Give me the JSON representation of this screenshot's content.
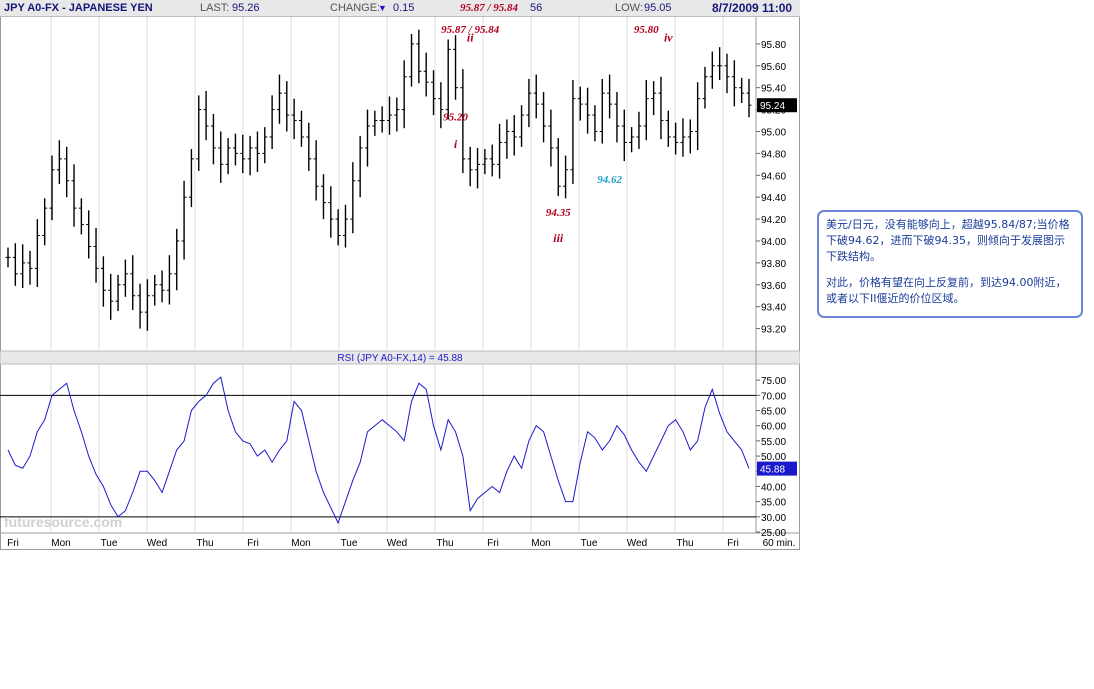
{
  "header": {
    "title": "JPY A0-FX - JAPANESE YEN",
    "last_label": "LAST:",
    "last_value": "95.26",
    "change_label": "CHANGE:",
    "change_arrow": "▼",
    "change_value": "0.15",
    "range_note": "95.87 / 95.84",
    "fragment": "56",
    "low_label": "LOW:",
    "low_value": "95.05",
    "datetime": "8/7/2009 11:00"
  },
  "colors": {
    "price": "#000000",
    "rsi": "#1a1acc",
    "annotation_red": "#b0001e",
    "annotation_blue": "#1aa0c8",
    "note_text": "#1c3d9a",
    "note_border": "#6b86d6"
  },
  "watermark": "futuresource.com",
  "chart_data": [
    {
      "type": "line",
      "subtype": "ohlc-bars",
      "title": "JPY A0-FX - JAPANESE YEN",
      "interval": "60 min.",
      "ylim": [
        93.05,
        96.0
      ],
      "y_ticks": [
        "95.80",
        "95.60",
        "95.40",
        "95.20",
        "95.00",
        "94.80",
        "94.60",
        "94.40",
        "94.20",
        "94.00",
        "93.80",
        "93.60",
        "93.40",
        "93.20"
      ],
      "last_marker": "95.24",
      "x_ticks": [
        "Fri",
        "Mon",
        "Tue",
        "Wed",
        "Thu",
        "Fri",
        "Mon",
        "Tue",
        "Wed",
        "Thu",
        "Fri",
        "Mon",
        "Tue",
        "Wed",
        "Thu",
        "Fri",
        "60 min."
      ],
      "grid": "vertical",
      "series": [
        {
          "values": [
            93.85,
            93.7,
            93.8,
            93.75,
            94.05,
            94.3,
            94.65,
            94.75,
            94.55,
            94.3,
            94.15,
            93.95,
            93.75,
            93.55,
            93.45,
            93.6,
            93.7,
            93.5,
            93.35,
            93.5,
            93.6,
            93.55,
            93.7,
            94.0,
            94.4,
            94.75,
            95.2,
            95.05,
            94.85,
            94.7,
            94.85,
            94.8,
            94.75,
            94.85,
            94.8,
            94.95,
            95.2,
            95.35,
            95.15,
            95.1,
            94.95,
            94.75,
            94.5,
            94.35,
            94.2,
            94.05,
            94.2,
            94.55,
            94.85,
            95.05,
            95.1,
            95.1,
            95.15,
            95.2,
            95.5,
            95.8,
            95.55,
            95.45,
            95.3,
            95.2,
            95.75,
            95.4,
            94.75,
            94.65,
            94.7,
            94.75,
            94.7,
            94.9,
            95.0,
            94.95,
            95.15,
            95.35,
            95.25,
            95.05,
            94.85,
            94.5,
            94.65,
            95.3,
            95.25,
            95.15,
            95.0,
            95.35,
            95.25,
            95.05,
            94.9,
            94.95,
            95.05,
            95.3,
            95.35,
            95.1,
            94.95,
            94.9,
            94.95,
            95.0,
            95.3,
            95.5,
            95.6,
            95.6,
            95.5,
            95.4,
            95.35,
            95.24
          ]
        },
        {
          "name": "RSI (JPY A0-FX,14) = 45.88",
          "ylim": [
            25,
            80
          ],
          "y_ticks": [
            "75.00",
            "70.00",
            "65.00",
            "60.00",
            "55.00",
            "50.00",
            "45.00",
            "40.00",
            "35.00",
            "30.00",
            "25.00"
          ],
          "ref_lines": [
            70,
            30
          ],
          "last_marker": "45.88",
          "values": [
            52,
            47,
            46,
            50,
            58,
            62,
            70,
            72,
            74,
            65,
            58,
            50,
            44,
            40,
            34,
            30,
            32,
            38,
            45,
            45,
            42,
            38,
            45,
            52,
            55,
            65,
            68,
            70,
            74,
            76,
            65,
            58,
            55,
            54,
            50,
            52,
            48,
            52,
            55,
            68,
            65,
            55,
            45,
            38,
            33,
            28,
            35,
            42,
            48,
            58,
            60,
            62,
            60,
            58,
            55,
            68,
            74,
            72,
            60,
            52,
            62,
            58,
            50,
            32,
            36,
            38,
            40,
            38,
            45,
            50,
            46,
            55,
            60,
            58,
            50,
            42,
            35,
            35,
            48,
            58,
            56,
            52,
            55,
            60,
            57,
            52,
            48,
            45,
            50,
            55,
            60,
            62,
            58,
            52,
            55,
            66,
            72,
            64,
            58,
            55,
            52,
            45.88
          ]
        }
      ],
      "annotations": [
        {
          "label": "95.87 / 95.84",
          "x": 63,
          "y": 95.9
        },
        {
          "label": "ii",
          "x": 63,
          "y": 95.82
        },
        {
          "label": "95.20",
          "x": 61,
          "y": 95.1
        },
        {
          "label": "i",
          "x": 61,
          "y": 94.85
        },
        {
          "label": "94.35",
          "x": 75,
          "y": 94.23
        },
        {
          "label": "iii",
          "x": 75,
          "y": 93.99
        },
        {
          "label": "94.62",
          "x": 82,
          "y": 94.53
        },
        {
          "label": "95.80",
          "x": 87,
          "y": 95.9
        },
        {
          "label": "iv",
          "x": 90,
          "y": 95.82
        }
      ]
    }
  ],
  "note": {
    "paragraphs": [
      "美元/日元，没有能够向上，超越95.84/87;当价格下破94.62，进而下破94.35，则倾向于发展图示下跌结构。",
      "对此，价格有望在向上反复前，到达94.00附近，或者以下II偃近的价位区域。"
    ]
  }
}
